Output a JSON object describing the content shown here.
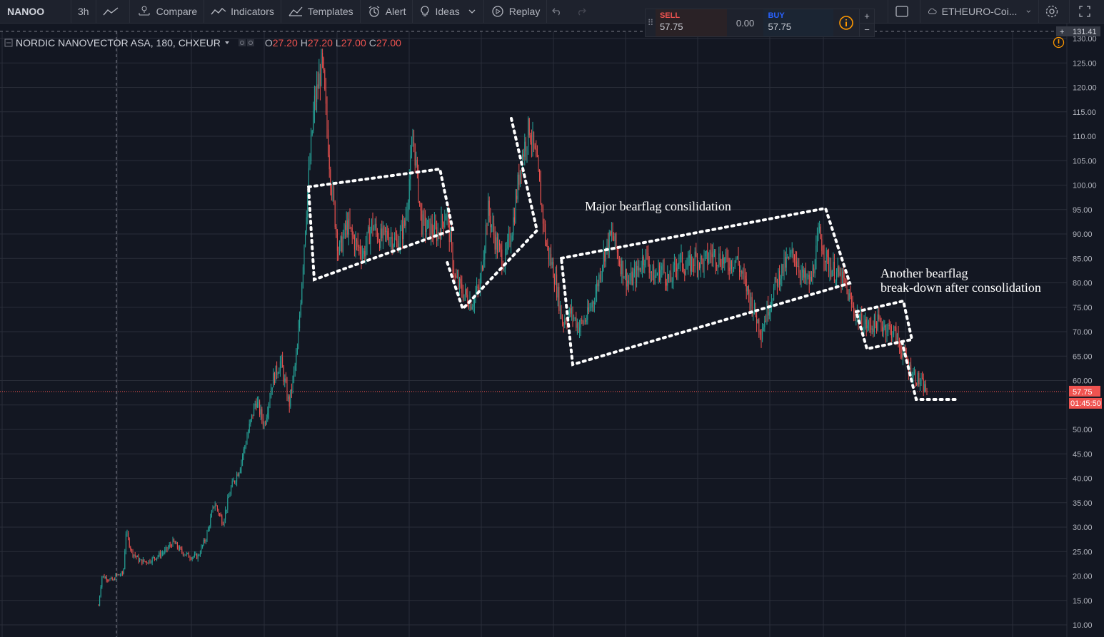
{
  "toolbar": {
    "symbol": "NANOO",
    "interval": "3h",
    "compare": "Compare",
    "indicators": "Indicators",
    "templates": "Templates",
    "alert": "Alert",
    "ideas": "Ideas",
    "replay": "Replay",
    "watchlist": "ETHEURO-Coi..."
  },
  "trade": {
    "sell_label": "SELL",
    "sell_price": "57.75",
    "spread": "0.00",
    "buy_label": "BUY",
    "buy_price": "57.75",
    "plus": "+",
    "minus": "−"
  },
  "legend": {
    "title": "NORDIC NANOVECTOR ASA, 180, CHXEUR",
    "o_key": "O",
    "o_val": "27.20",
    "h_key": "H",
    "h_val": "27.20",
    "l_key": "L",
    "l_val": "27.00",
    "c_key": "C",
    "c_val": "27.00"
  },
  "annotations": {
    "major": "Major bearflag consilidation",
    "another_line1": "Another bearflag",
    "another_line2": "break-down after consolidation"
  },
  "colors": {
    "background": "#131722",
    "up": "#26a69a",
    "down": "#ef5350",
    "grid": "#2a2e39",
    "price_line": "#ef5350",
    "annotation": "#ffffff"
  },
  "chart_data": {
    "type": "candlestick",
    "title": "NORDIC NANOVECTOR ASA, 180, CHXEUR",
    "ylim": [
      9,
      131
    ],
    "y_ticks": [
      10,
      15,
      20,
      25,
      30,
      35,
      40,
      45,
      50,
      55,
      60,
      65,
      70,
      75,
      80,
      85,
      90,
      95,
      100,
      105,
      110,
      115,
      120,
      125,
      130
    ],
    "y_tick_labels": [
      "10.00",
      "15.00",
      "20.00",
      "25.00",
      "30.00",
      "35.00",
      "40.00",
      "45.00",
      "50.00",
      "55.00",
      "60.00",
      "65.00",
      "70.00",
      "75.00",
      "80.00",
      "85.00",
      "90.00",
      "95.00",
      "100.00",
      "105.00",
      "110.00",
      "115.00",
      "120.00",
      "125.00",
      "130.00"
    ],
    "current_price": 57.75,
    "current_price_label": "57.75",
    "countdown_label": "01:45:50",
    "crosshair_price_label": "131.41",
    "grid": true,
    "path": [
      [
        0,
        14
      ],
      [
        0.4,
        20
      ],
      [
        1.8,
        19
      ],
      [
        2,
        20
      ],
      [
        3,
        20.5
      ],
      [
        3.3,
        29
      ],
      [
        4,
        25
      ],
      [
        5,
        23
      ],
      [
        6,
        23
      ],
      [
        7,
        24
      ],
      [
        8,
        25
      ],
      [
        9,
        27
      ],
      [
        10,
        25
      ],
      [
        11,
        24
      ],
      [
        12,
        24
      ],
      [
        13,
        28
      ],
      [
        14,
        35
      ],
      [
        15,
        31
      ],
      [
        16,
        38
      ],
      [
        17,
        42
      ],
      [
        18,
        49
      ],
      [
        19,
        56
      ],
      [
        20,
        51
      ],
      [
        21,
        60
      ],
      [
        22,
        64
      ],
      [
        23,
        55
      ],
      [
        24,
        66
      ],
      [
        25,
        93
      ],
      [
        26,
        116
      ],
      [
        27,
        125
      ],
      [
        28,
        102
      ],
      [
        29,
        86
      ],
      [
        30,
        92
      ],
      [
        31,
        88
      ],
      [
        32,
        86
      ],
      [
        33,
        92
      ],
      [
        34,
        89
      ],
      [
        35,
        90
      ],
      [
        36,
        88
      ],
      [
        37,
        92
      ],
      [
        38,
        110
      ],
      [
        39,
        92
      ],
      [
        40,
        91
      ],
      [
        41,
        90
      ],
      [
        42,
        95
      ],
      [
        43,
        81
      ],
      [
        44,
        78
      ],
      [
        45,
        76
      ],
      [
        46,
        79
      ],
      [
        47,
        95
      ],
      [
        48,
        88
      ],
      [
        49,
        84
      ],
      [
        50,
        92
      ],
      [
        51,
        105
      ],
      [
        52,
        112
      ],
      [
        53,
        103
      ],
      [
        54,
        88
      ],
      [
        55,
        82
      ],
      [
        56,
        72
      ],
      [
        57,
        74
      ],
      [
        58,
        71
      ],
      [
        59,
        73
      ],
      [
        60,
        78
      ],
      [
        61,
        86
      ],
      [
        62,
        90
      ],
      [
        63,
        84
      ],
      [
        64,
        80
      ],
      [
        65,
        82
      ],
      [
        66,
        86
      ],
      [
        67,
        81
      ],
      [
        68,
        83
      ],
      [
        69,
        80
      ],
      [
        70,
        85
      ],
      [
        71,
        83
      ],
      [
        72,
        85
      ],
      [
        73,
        84
      ],
      [
        74,
        86
      ],
      [
        75,
        85
      ],
      [
        76,
        84
      ],
      [
        77,
        85
      ],
      [
        78,
        80
      ],
      [
        79,
        75
      ],
      [
        80,
        70
      ],
      [
        81,
        76
      ],
      [
        82,
        81
      ],
      [
        83,
        84
      ],
      [
        84,
        86
      ],
      [
        85,
        81
      ],
      [
        86,
        80
      ],
      [
        87,
        90
      ],
      [
        88,
        84
      ],
      [
        89,
        82
      ],
      [
        90,
        80
      ],
      [
        91,
        75
      ],
      [
        92,
        72
      ],
      [
        93,
        71
      ],
      [
        94,
        72
      ],
      [
        95,
        71
      ],
      [
        96,
        70
      ],
      [
        97,
        66
      ],
      [
        98,
        62
      ],
      [
        99,
        60
      ],
      [
        100,
        57.75
      ]
    ],
    "x_span": [
      0,
      100
    ]
  }
}
